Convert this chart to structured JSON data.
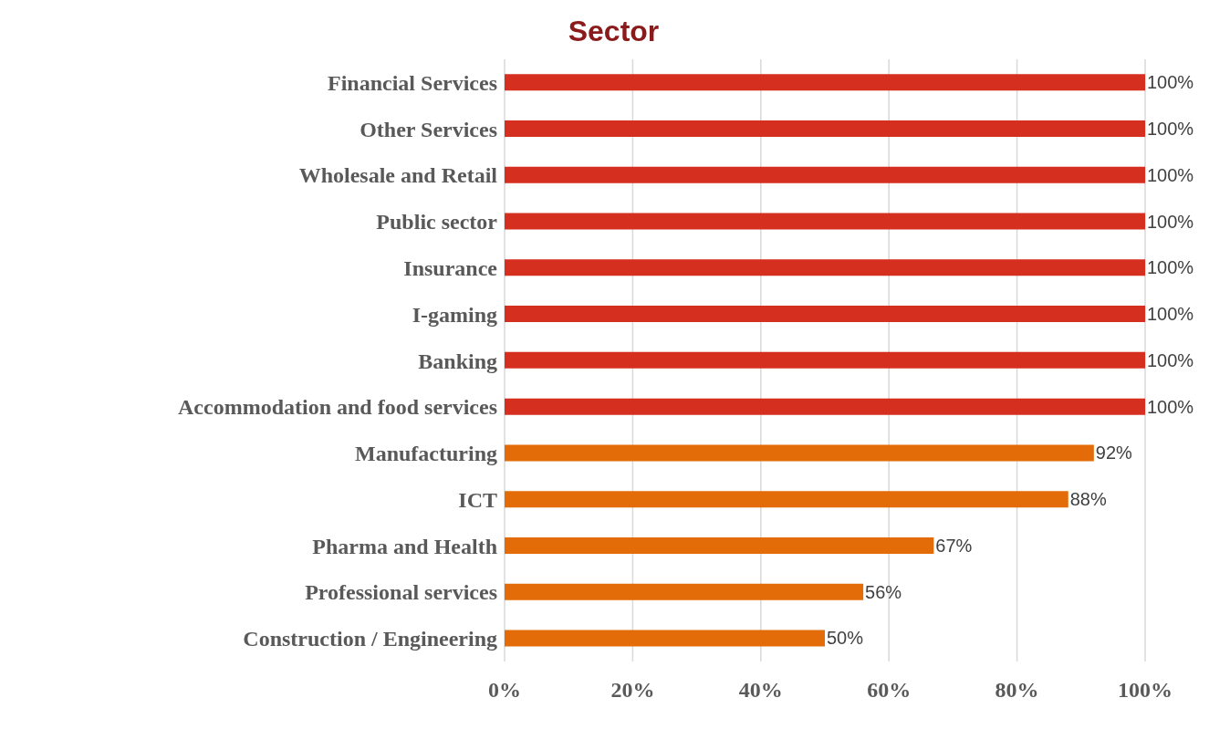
{
  "chart_data": {
    "type": "bar",
    "orientation": "horizontal",
    "title": "Sector",
    "categories": [
      "Financial Services",
      "Other Services",
      "Wholesale and Retail",
      "Public sector",
      "Insurance",
      "I-gaming",
      "Banking",
      "Accommodation and food services",
      "Manufacturing",
      "ICT",
      "Pharma and Health",
      "Professional services",
      "Construction / Engineering"
    ],
    "values": [
      100,
      100,
      100,
      100,
      100,
      100,
      100,
      100,
      92,
      88,
      67,
      56,
      50
    ],
    "colors": [
      "#d52f1f",
      "#d52f1f",
      "#d52f1f",
      "#d52f1f",
      "#d52f1f",
      "#d52f1f",
      "#d52f1f",
      "#d52f1f",
      "#e36c09",
      "#e36c09",
      "#e36c09",
      "#e36c09",
      "#e36c09"
    ],
    "value_labels": [
      "100%",
      "100%",
      "100%",
      "100%",
      "100%",
      "100%",
      "100%",
      "100%",
      "92%",
      "88%",
      "67%",
      "56%",
      "50%"
    ],
    "xlim": [
      0,
      100
    ],
    "xticks": [
      {
        "value": 0,
        "label": "0%"
      },
      {
        "value": 20,
        "label": "20%"
      },
      {
        "value": 40,
        "label": "40%"
      },
      {
        "value": 60,
        "label": "60%"
      },
      {
        "value": 80,
        "label": "80%"
      },
      {
        "value": 100,
        "label": "100%"
      }
    ],
    "grid": "x",
    "legend": false
  }
}
